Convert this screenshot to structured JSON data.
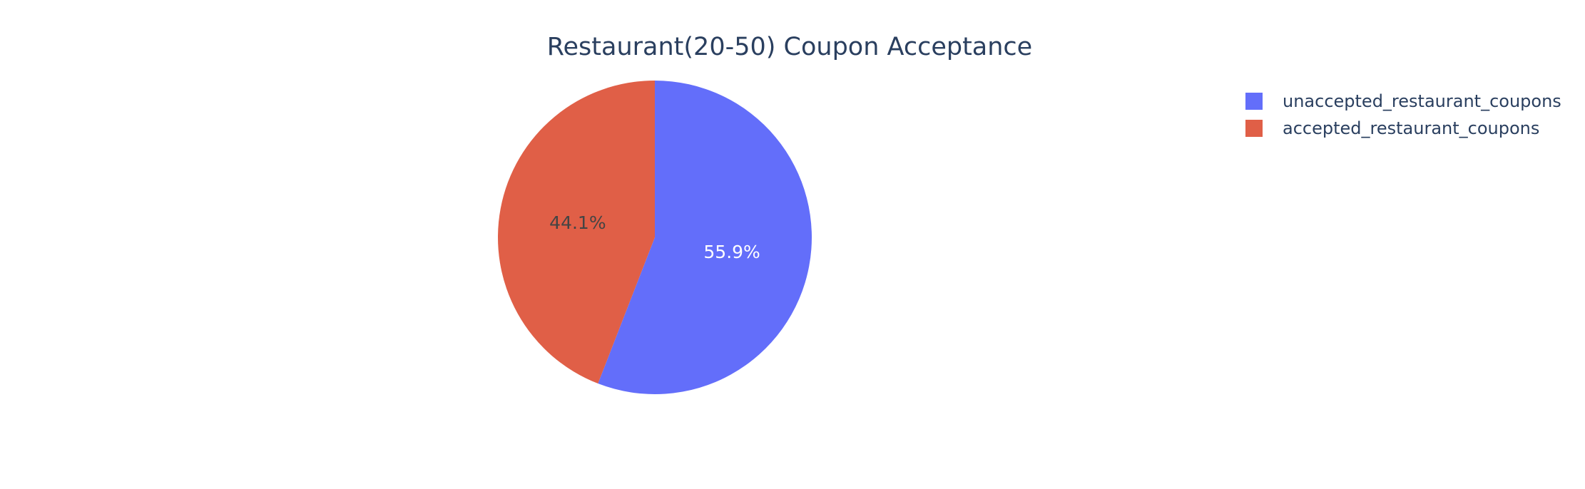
{
  "chart_data": {
    "type": "pie",
    "title": "Restaurant(20-50) Coupon Acceptance",
    "slices": [
      {
        "name": "unaccepted_restaurant_coupons",
        "value": 55.9,
        "label": "55.9%",
        "color": "#636efa",
        "label_color": "#ffffff"
      },
      {
        "name": "accepted_restaurant_coupons",
        "value": 44.1,
        "label": "44.1%",
        "color": "#e05f47",
        "label_color": "#444444"
      }
    ],
    "legend_position": "top-right",
    "start_angle": "top",
    "direction": "clockwise"
  }
}
